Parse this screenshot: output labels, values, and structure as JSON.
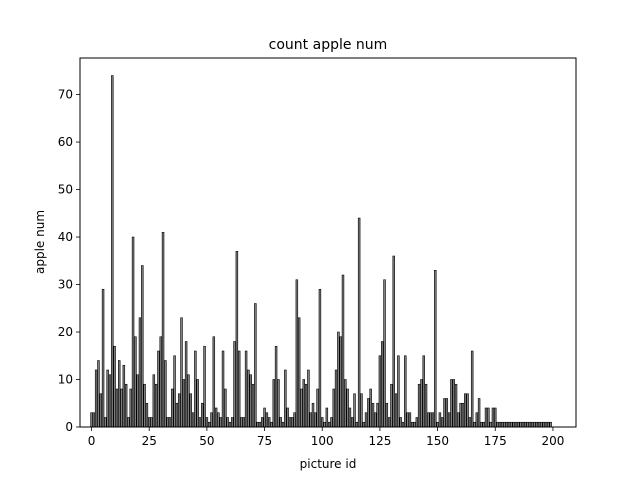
{
  "chart_data": {
    "type": "bar",
    "title": "count apple num",
    "xlabel": "picture id",
    "ylabel": "apple num",
    "xlim": [
      -5,
      210
    ],
    "ylim": [
      0,
      77.7
    ],
    "xticks": [
      0,
      25,
      50,
      75,
      100,
      125,
      150,
      175,
      200
    ],
    "yticks": [
      0,
      10,
      20,
      30,
      40,
      50,
      60,
      70
    ],
    "grid": false,
    "legend": "none",
    "colors": {
      "bar_fill": "#808080",
      "bar_edge": "#000000"
    },
    "x": [
      0,
      1,
      2,
      3,
      4,
      5,
      6,
      7,
      8,
      9,
      10,
      11,
      12,
      13,
      14,
      15,
      16,
      17,
      18,
      19,
      20,
      21,
      22,
      23,
      24,
      25,
      26,
      27,
      28,
      29,
      30,
      31,
      32,
      33,
      34,
      35,
      36,
      37,
      38,
      39,
      40,
      41,
      42,
      43,
      44,
      45,
      46,
      47,
      48,
      49,
      50,
      51,
      52,
      53,
      54,
      55,
      56,
      57,
      58,
      59,
      60,
      61,
      62,
      63,
      64,
      65,
      66,
      67,
      68,
      69,
      70,
      71,
      72,
      73,
      74,
      75,
      76,
      77,
      78,
      79,
      80,
      81,
      82,
      83,
      84,
      85,
      86,
      87,
      88,
      89,
      90,
      91,
      92,
      93,
      94,
      95,
      96,
      97,
      98,
      99,
      100,
      101,
      102,
      103,
      104,
      105,
      106,
      107,
      108,
      109,
      110,
      111,
      112,
      113,
      114,
      115,
      116,
      117,
      118,
      119,
      120,
      121,
      122,
      123,
      124,
      125,
      126,
      127,
      128,
      129,
      130,
      131,
      132,
      133,
      134,
      135,
      136,
      137,
      138,
      139,
      140,
      141,
      142,
      143,
      144,
      145,
      146,
      147,
      148,
      149,
      150,
      151,
      152,
      153,
      154,
      155,
      156,
      157,
      158,
      159,
      160,
      161,
      162,
      163,
      164,
      165,
      166,
      167,
      168,
      169,
      170,
      171,
      172,
      173,
      174,
      175,
      176,
      177,
      178,
      179,
      180,
      181,
      182,
      183,
      184,
      185,
      186,
      187,
      188,
      189,
      190,
      191,
      192,
      193,
      194,
      195,
      196,
      197,
      198,
      199
    ],
    "values": [
      3,
      3,
      12,
      14,
      7,
      29,
      2,
      12,
      11,
      74,
      17,
      8,
      14,
      8,
      13,
      9,
      2,
      8,
      40,
      19,
      11,
      23,
      34,
      9,
      5,
      2,
      2,
      11,
      9,
      16,
      19,
      41,
      14,
      2,
      2,
      8,
      15,
      5,
      7,
      23,
      10,
      18,
      11,
      7,
      3,
      16,
      10,
      2,
      5,
      17,
      2,
      1,
      3,
      19,
      4,
      3,
      2,
      16,
      8,
      2,
      1,
      2,
      18,
      37,
      16,
      2,
      2,
      16,
      12,
      11,
      9,
      26,
      1,
      1,
      2,
      4,
      3,
      2,
      1,
      10,
      17,
      10,
      2,
      1,
      12,
      4,
      2,
      2,
      3,
      31,
      23,
      8,
      10,
      9,
      12,
      3,
      5,
      3,
      8,
      29,
      2,
      1,
      4,
      1,
      2,
      8,
      12,
      20,
      19,
      32,
      10,
      8,
      4,
      2,
      7,
      1,
      44,
      7,
      1,
      3,
      6,
      8,
      5,
      3,
      5,
      15,
      18,
      31,
      5,
      2,
      9,
      36,
      7,
      15,
      2,
      1,
      15,
      3,
      3,
      1,
      1,
      2,
      9,
      10,
      15,
      9,
      3,
      3,
      3,
      33,
      1,
      3,
      2,
      6,
      6,
      3,
      10,
      10,
      9,
      3,
      5,
      5,
      7,
      7,
      2,
      16,
      1,
      3,
      6,
      1,
      1,
      4,
      4,
      1,
      4,
      4,
      1,
      1,
      1,
      1,
      1,
      1,
      1,
      1,
      1,
      1,
      1,
      1,
      1,
      1,
      1,
      1,
      1,
      1,
      1,
      1,
      1,
      1,
      1,
      1
    ]
  }
}
